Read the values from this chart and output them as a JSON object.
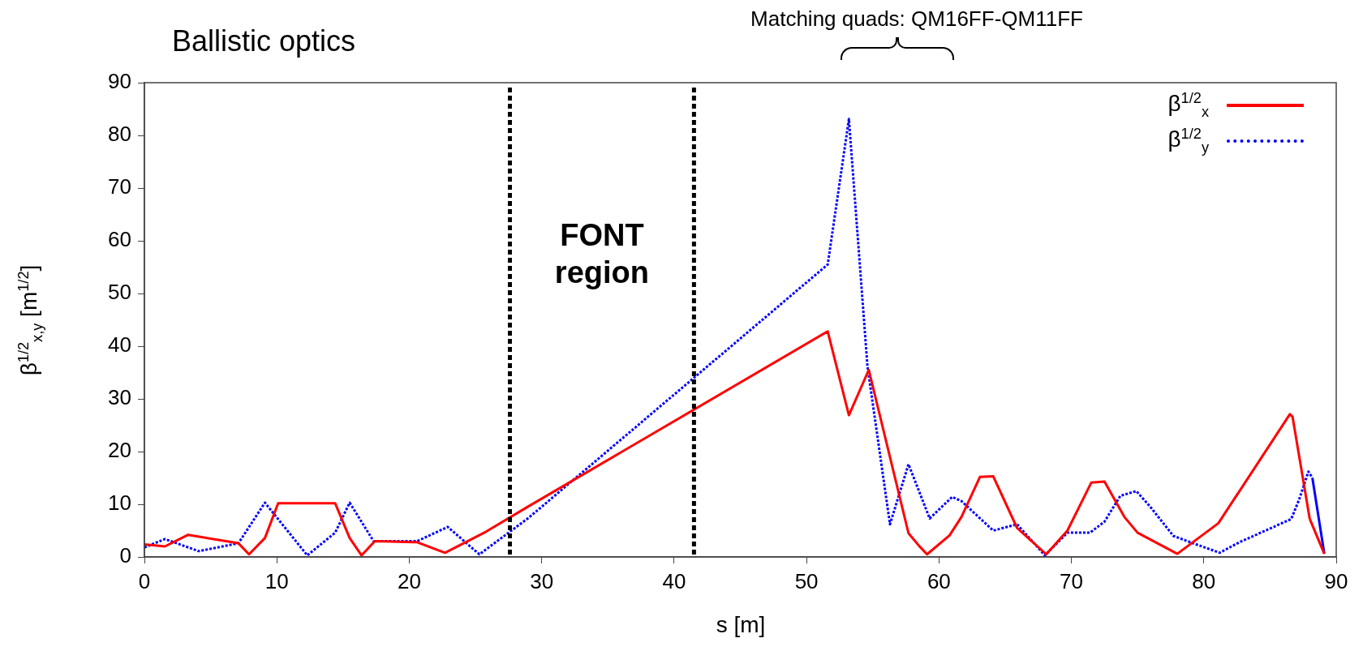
{
  "chart_data": {
    "type": "line",
    "title": "Ballistic optics",
    "xlabel": "s [m]",
    "ylabel": "β$^{1/2}$$_{x,y}$ [m$^{1/2}$]",
    "xlim": [
      0,
      90
    ],
    "xticks": [
      0,
      10,
      20,
      30,
      40,
      50,
      60,
      70,
      80,
      90
    ],
    "ylim": [
      0,
      90
    ],
    "yticks": [
      0,
      10,
      20,
      30,
      40,
      50,
      60,
      70,
      80,
      90
    ],
    "grid": false,
    "legend": "top right",
    "marker": "none",
    "series": [
      {
        "name": "β$^{1/2}$$_{x}$",
        "color": "#ff0000",
        "line_style": "solid",
        "x": [
          0,
          1.55,
          3.3,
          7.1,
          7.9,
          9.1,
          10.1,
          14.4,
          15.5,
          16.4,
          17.4,
          20.6,
          22.7,
          25.8,
          29.0,
          51.6,
          53.2,
          54.7,
          57.7,
          58.5,
          59.1,
          60.8,
          61.7,
          63.1,
          64.1,
          65.9,
          68.1,
          69.7,
          71.5,
          72.5,
          74.0,
          75.0,
          78.0,
          81.1,
          86.5,
          86.7,
          88.0,
          89.1
        ],
        "values": [
          2.4,
          2.0,
          4.2,
          2.6,
          0.5,
          3.6,
          10.2,
          10.2,
          3.6,
          0.3,
          3.0,
          2.8,
          0.8,
          4.8,
          9.6,
          42.8,
          26.9,
          35.5,
          4.5,
          2.1,
          0.5,
          4.1,
          7.6,
          15.2,
          15.3,
          5.5,
          0.5,
          5.0,
          14.1,
          14.3,
          7.6,
          4.6,
          0.6,
          6.4,
          27.1,
          26.6,
          7.2,
          0.6
        ]
      },
      {
        "name": "β$^{1/2}$$_{y}$",
        "color": "#0000ff",
        "line_style": "dotted",
        "x": [
          0,
          1.55,
          4.1,
          7.1,
          9.1,
          12.3,
          14.4,
          15.5,
          17.3,
          20.6,
          22.9,
          25.3,
          29.0,
          51.6,
          53.2,
          54.6,
          56.3,
          57.7,
          59.3,
          61.0,
          61.7,
          64.1,
          65.9,
          68.0,
          69.7,
          71.4,
          72.5,
          73.7,
          74.9,
          75.9,
          77.7,
          79.3,
          81.2,
          82.7,
          86.6,
          87.2,
          87.9,
          88.2,
          89.1
        ],
        "values": [
          1.8,
          3.4,
          1.1,
          2.6,
          10.3,
          0.3,
          4.6,
          10.3,
          3.0,
          3.0,
          5.7,
          0.5,
          7.4,
          55.5,
          83.1,
          36.2,
          6.2,
          17.6,
          7.3,
          11.4,
          10.6,
          5.0,
          6.2,
          0.3,
          4.6,
          4.6,
          6.7,
          11.6,
          12.5,
          9.7,
          4.0,
          2.5,
          0.8,
          2.8,
          7.2,
          10.9,
          16.2,
          15.0,
          0.6
        ]
      }
    ],
    "ref_lines": [
      {
        "axis": "x",
        "value": 27.6,
        "color": "#000000",
        "line_style": "dotted"
      },
      {
        "axis": "x",
        "value": 41.5,
        "color": "#000000",
        "line_style": "dotted"
      }
    ],
    "annotations": [
      "FONT region",
      "Matching quads: QM16FF-QM11FF"
    ]
  }
}
